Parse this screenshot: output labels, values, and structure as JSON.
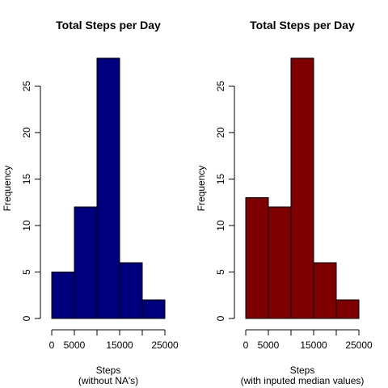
{
  "chart_data": [
    {
      "type": "bar",
      "title": "Total Steps per Day",
      "xlabel": "Steps",
      "xsublabel": "(without NA's)",
      "ylabel": "Frequency",
      "bin_edges": [
        0,
        5000,
        10000,
        15000,
        20000,
        25000
      ],
      "values": [
        5,
        12,
        28,
        6,
        2
      ],
      "xticks": [
        0,
        5000,
        15000,
        25000
      ],
      "xtick_labels": [
        "0",
        "5000",
        "15000",
        "25000"
      ],
      "yticks": [
        0,
        5,
        10,
        15,
        20,
        25
      ],
      "yrange": [
        0,
        28
      ],
      "fill": "#00007F"
    },
    {
      "type": "bar",
      "title": "Total Steps per Day",
      "xlabel": "Steps",
      "xsublabel": "(with inputed median values)",
      "ylabel": "Frequency",
      "bin_edges": [
        0,
        5000,
        10000,
        15000,
        20000,
        25000
      ],
      "values": [
        13,
        12,
        28,
        6,
        2
      ],
      "xticks": [
        0,
        5000,
        15000,
        25000
      ],
      "xtick_labels": [
        "0",
        "5000",
        "15000",
        "25000"
      ],
      "yticks": [
        0,
        5,
        10,
        15,
        20,
        25
      ],
      "yrange": [
        0,
        28
      ],
      "fill": "#7F0000"
    }
  ]
}
